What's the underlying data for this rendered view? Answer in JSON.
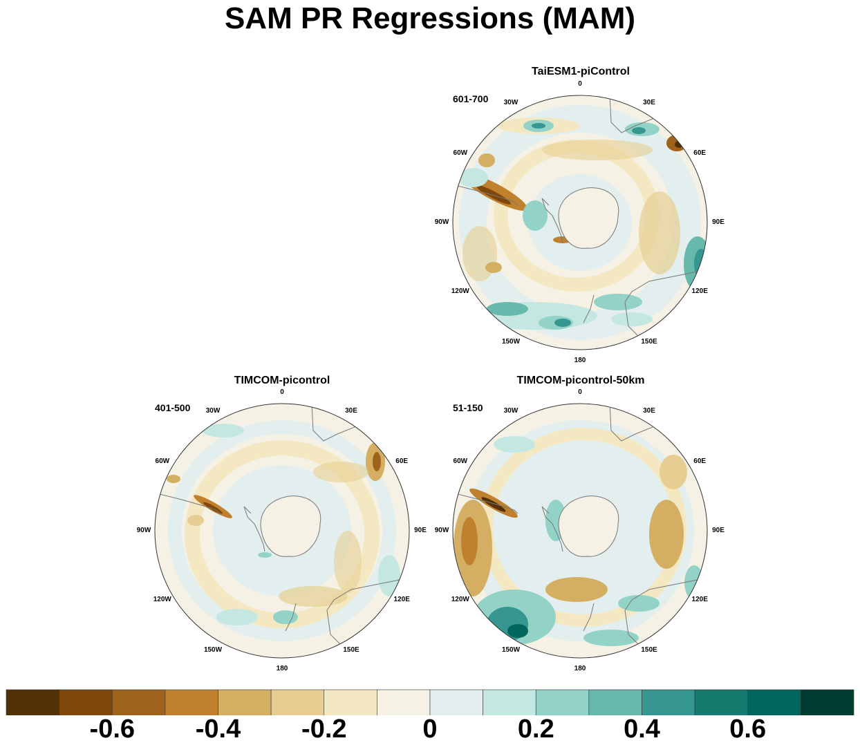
{
  "title": "SAM PR Regressions (MAM)",
  "panels": [
    {
      "id": "taiesm1",
      "title": "TaiESM1-piControl",
      "years": "601-700"
    },
    {
      "id": "timcom",
      "title": "TIMCOM-picontrol",
      "years": "401-500"
    },
    {
      "id": "timcom50",
      "title": "TIMCOM-picontrol-50km",
      "years": "51-150"
    }
  ],
  "longitude_labels": [
    "0",
    "30E",
    "60E",
    "90E",
    "120E",
    "150E",
    "180",
    "150W",
    "120W",
    "90W",
    "60W",
    "30W"
  ],
  "colorbar": {
    "colors": [
      "#543005",
      "#7f470c",
      "#a0631c",
      "#bf812d",
      "#d4ae62",
      "#e6ce92",
      "#f4e8c2",
      "#f5f1e4",
      "#e2efee",
      "#c4e8e1",
      "#93d3c7",
      "#67b9ac",
      "#35978f",
      "#167a6f",
      "#01665e",
      "#003c30"
    ],
    "labels": [
      "-0.6",
      "-0.4",
      "-0.2",
      "0",
      "0.2",
      "0.4",
      "0.6"
    ],
    "label_values": [
      -0.6,
      -0.4,
      -0.2,
      0,
      0.2,
      0.4,
      0.6
    ],
    "range": [
      -0.8,
      0.8
    ]
  }
}
